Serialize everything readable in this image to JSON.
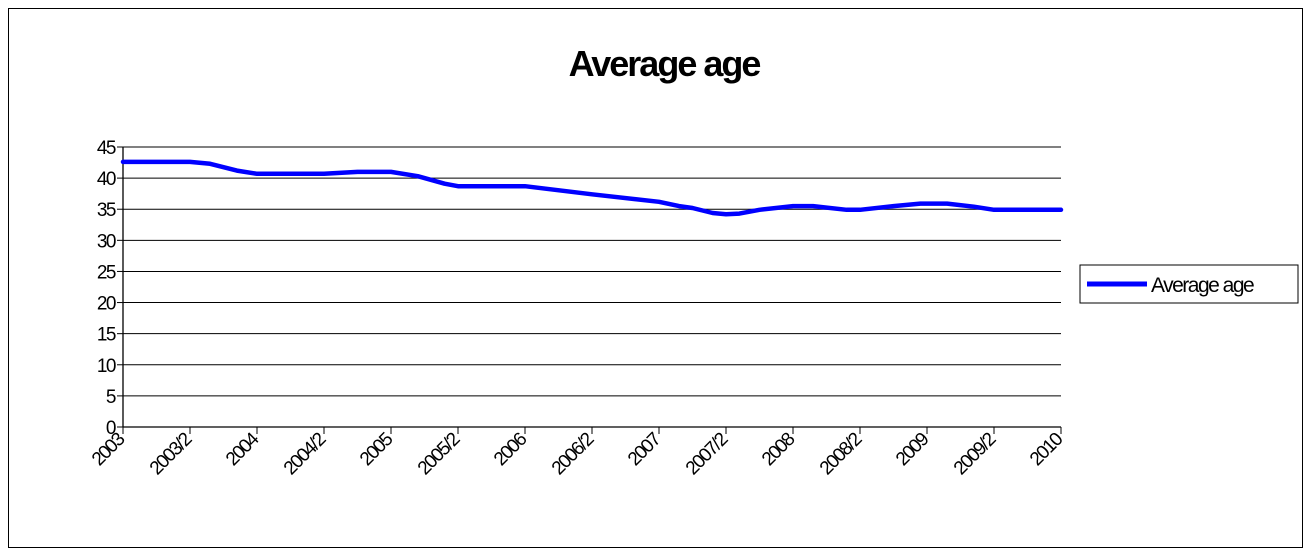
{
  "chart_data": {
    "type": "line",
    "title": "Average age",
    "xlabel": "",
    "ylabel": "",
    "categories": [
      "2003",
      "2003/2",
      "2004",
      "2004/2",
      "2005",
      "2005/2",
      "2006",
      "2006/2",
      "2007",
      "2007/2",
      "2008",
      "2008/2",
      "2009",
      "2009/2",
      "2010"
    ],
    "ylim": [
      0,
      45
    ],
    "yticks": [
      0,
      5,
      10,
      15,
      20,
      25,
      30,
      35,
      40,
      45
    ],
    "grid": true,
    "legend_position": "right",
    "series": [
      {
        "name": "Average age",
        "color": "#0000ff",
        "points": [
          [
            0,
            42.6
          ],
          [
            1,
            42.6
          ],
          [
            1.3,
            42.3
          ],
          [
            1.7,
            41.2
          ],
          [
            2,
            40.7
          ],
          [
            2.5,
            40.7
          ],
          [
            3,
            40.7
          ],
          [
            3.5,
            41.0
          ],
          [
            4,
            41.0
          ],
          [
            4.4,
            40.3
          ],
          [
            4.8,
            39.1
          ],
          [
            5,
            38.7
          ],
          [
            5.5,
            38.7
          ],
          [
            6,
            38.7
          ],
          [
            7,
            37.4
          ],
          [
            8,
            36.2
          ],
          [
            8.3,
            35.5
          ],
          [
            8.5,
            35.2
          ],
          [
            8.8,
            34.4
          ],
          [
            9,
            34.2
          ],
          [
            9.2,
            34.3
          ],
          [
            9.5,
            34.9
          ],
          [
            10,
            35.5
          ],
          [
            10.3,
            35.5
          ],
          [
            10.8,
            34.9
          ],
          [
            11,
            34.9
          ],
          [
            11.5,
            35.5
          ],
          [
            11.9,
            35.9
          ],
          [
            12.3,
            35.9
          ],
          [
            12.7,
            35.4
          ],
          [
            13,
            34.9
          ],
          [
            14,
            34.9
          ]
        ]
      }
    ]
  }
}
